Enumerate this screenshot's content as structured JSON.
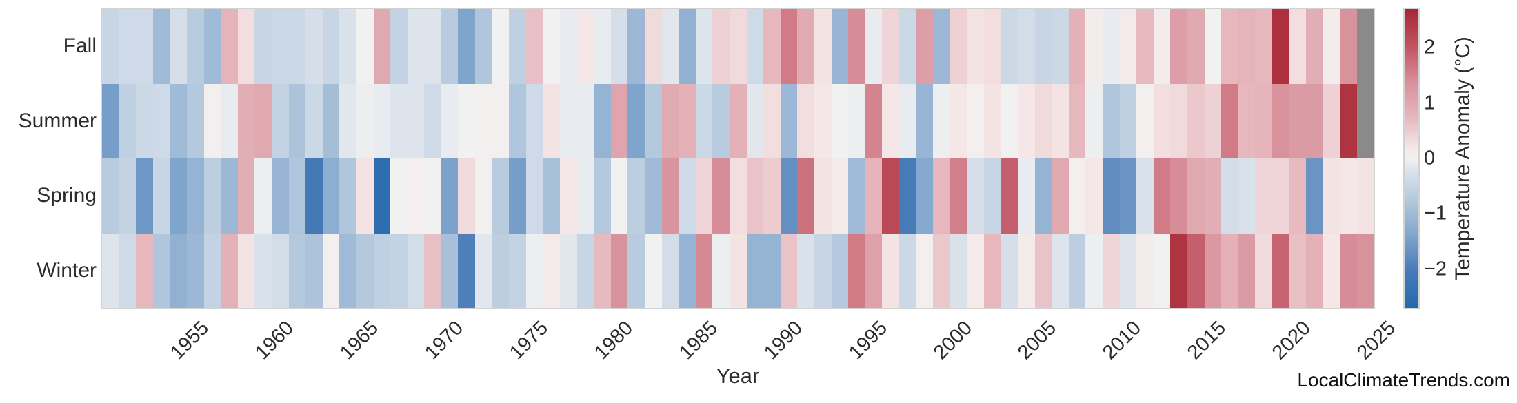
{
  "annotations": {
    "watermark": "LocalClimateTrends.com"
  },
  "chart_data": {
    "type": "heatmap",
    "title": "",
    "xlabel": "Year",
    "x_range": {
      "start": 1951,
      "end": 2025,
      "step": 1
    },
    "x_tick_labels": [
      "1955",
      "1960",
      "1965",
      "1970",
      "1975",
      "1980",
      "1985",
      "1990",
      "1995",
      "2000",
      "2005",
      "2010",
      "2015",
      "2020",
      "2025"
    ],
    "row_categories": [
      "Fall",
      "Summer",
      "Spring",
      "Winter"
    ],
    "missing_value_color": "#8a8a8a",
    "missing_cells": [
      {
        "row": "Fall",
        "year": 2025
      },
      {
        "row": "Summer",
        "year": 2025
      }
    ],
    "colorbar": {
      "label": "Temperature Anomaly (°C)",
      "tick_values": [
        2,
        1,
        0,
        -1,
        -2
      ],
      "tick_labels": [
        "2",
        "1",
        "0",
        "−1",
        "−2"
      ],
      "vmin": -2.7,
      "vmax": 2.7,
      "gradient_stops": [
        {
          "v": -2.7,
          "c": "#2369ad"
        },
        {
          "v": -2.0,
          "c": "#4a7cb8"
        },
        {
          "v": -1.35,
          "c": "#85a8ce"
        },
        {
          "v": -0.7,
          "c": "#b8cbdf"
        },
        {
          "v": -0.2,
          "c": "#dde4ec"
        },
        {
          "v": 0.0,
          "c": "#f2f1f1"
        },
        {
          "v": 0.2,
          "c": "#f5e7e7"
        },
        {
          "v": 0.7,
          "c": "#e7bac0"
        },
        {
          "v": 1.35,
          "c": "#d8929c"
        },
        {
          "v": 2.0,
          "c": "#c25664"
        },
        {
          "v": 2.7,
          "c": "#a62633"
        }
      ]
    },
    "series": [
      {
        "name": "Fall",
        "values": [
          -0.5,
          -0.4,
          -0.4,
          -1.0,
          -0.3,
          -0.7,
          -1.0,
          0.8,
          0.3,
          -0.5,
          -0.45,
          -0.45,
          -0.3,
          -0.5,
          -0.25,
          0.0,
          1.0,
          -0.55,
          -0.2,
          -0.2,
          -0.7,
          -1.4,
          -0.8,
          0.0,
          -0.6,
          0.65,
          0.0,
          -0.1,
          0.2,
          -0.1,
          -0.3,
          -1.05,
          0.35,
          -0.15,
          -1.2,
          -0.2,
          0.45,
          0.35,
          -0.4,
          0.75,
          1.6,
          0.95,
          0.25,
          -1.1,
          1.4,
          -0.1,
          0.4,
          -0.45,
          1.15,
          -1.05,
          0.45,
          0.25,
          0.3,
          -0.45,
          -0.35,
          -0.5,
          -0.45,
          0.85,
          0.1,
          -0.1,
          0.15,
          0.7,
          0.1,
          1.15,
          1.0,
          0.0,
          0.75,
          0.8,
          0.75,
          2.55,
          0.3,
          0.9,
          0.1,
          1.35,
          null
        ]
      },
      {
        "name": "Summer",
        "values": [
          -1.5,
          -0.6,
          -0.45,
          -0.4,
          -1.0,
          -0.75,
          0.05,
          -0.1,
          0.9,
          1.0,
          -0.55,
          -0.85,
          -0.45,
          -0.95,
          -0.15,
          -0.05,
          -0.1,
          -0.2,
          -0.2,
          -0.4,
          -0.1,
          0.0,
          0.05,
          0.05,
          -0.8,
          -0.4,
          0.25,
          -0.1,
          -0.1,
          -1.15,
          1.05,
          -1.4,
          -0.75,
          0.95,
          0.85,
          -0.45,
          -0.7,
          0.85,
          -0.15,
          0.3,
          -1.05,
          0.3,
          0.2,
          0.0,
          -0.05,
          1.5,
          0.2,
          -0.1,
          -1.1,
          -0.05,
          0.2,
          0.05,
          0.25,
          0.0,
          0.2,
          0.35,
          0.25,
          0.75,
          -0.05,
          -0.8,
          -0.6,
          0.05,
          0.3,
          0.35,
          0.55,
          0.45,
          1.6,
          0.75,
          0.8,
          1.35,
          1.2,
          1.2,
          0.45,
          2.5,
          null
        ]
      },
      {
        "name": "Spring",
        "values": [
          -0.7,
          -0.55,
          -1.6,
          -0.5,
          -1.4,
          -1.15,
          -0.65,
          -1.05,
          0.9,
          -0.05,
          -1.1,
          -0.8,
          -2.1,
          -1.25,
          -0.8,
          0.25,
          -2.5,
          0.0,
          0.05,
          0.0,
          -1.45,
          0.35,
          0.05,
          -0.7,
          -1.5,
          -0.4,
          -0.9,
          0.2,
          -0.1,
          -0.75,
          0.0,
          -0.65,
          -1.0,
          1.3,
          -0.4,
          0.4,
          1.4,
          0.3,
          0.6,
          0.5,
          -1.7,
          1.7,
          0.25,
          0.15,
          -1.0,
          0.8,
          2.2,
          -2.05,
          -1.35,
          0.75,
          1.55,
          -0.3,
          -0.5,
          1.9,
          -0.1,
          -1.15,
          1.0,
          0.05,
          0.2,
          -1.75,
          -1.65,
          -0.25,
          1.6,
          1.4,
          1.0,
          0.9,
          -0.35,
          -0.25,
          0.4,
          0.4,
          0.7,
          -1.65,
          0.25,
          0.2,
          0.25
        ]
      },
      {
        "name": "Winter",
        "values": [
          -0.2,
          -0.4,
          0.75,
          -0.8,
          -1.2,
          -1.05,
          -0.55,
          0.85,
          0.25,
          -0.25,
          -0.35,
          -0.75,
          -0.85,
          0.05,
          -1.0,
          -0.75,
          -0.6,
          -0.55,
          -0.35,
          0.65,
          -0.9,
          -1.95,
          -0.15,
          -0.65,
          -0.55,
          -0.05,
          0.15,
          -0.15,
          -0.5,
          0.7,
          1.35,
          -0.7,
          0.0,
          -0.35,
          -1.15,
          1.45,
          -0.05,
          0.25,
          -1.15,
          -1.15,
          0.6,
          -0.25,
          -0.5,
          -0.75,
          1.6,
          1.1,
          0.25,
          -0.45,
          0.05,
          0.55,
          -0.25,
          0.15,
          0.75,
          -0.3,
          0.15,
          0.6,
          -0.2,
          -0.65,
          -0.05,
          0.4,
          -0.2,
          0.1,
          0.0,
          2.5,
          1.9,
          1.25,
          0.85,
          1.2,
          0.35,
          1.85,
          0.65,
          0.85,
          0.2,
          1.4,
          1.35
        ]
      }
    ],
    "layout": {
      "grid": false,
      "legend": "none",
      "colorbar_position": "right",
      "x_tick_rotation_deg": 45
    }
  }
}
